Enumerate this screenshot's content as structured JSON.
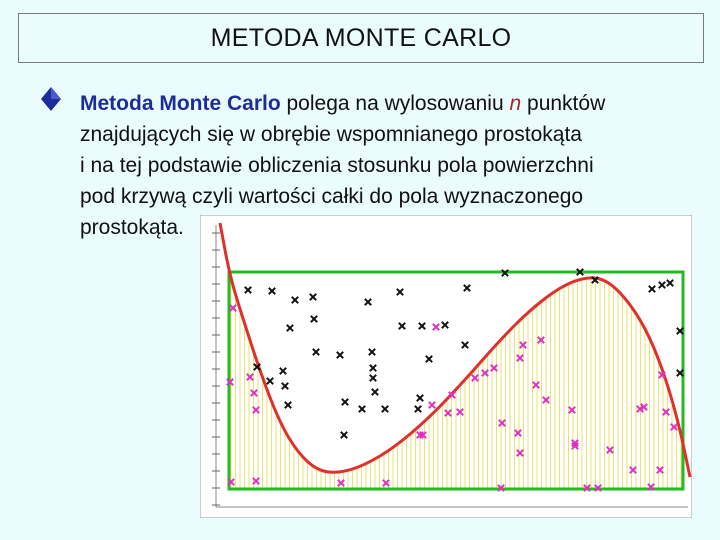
{
  "slide": {
    "title": "METODA MONTE CARLO",
    "bullet_icon": "diamond-bullet-icon",
    "text": {
      "term": "Metoda Monte Carlo",
      "line1_a": " polega na wylosowaniu ",
      "variable": "n",
      "line1_b": " punktów",
      "line2": "znajdujących się w obrębie wspomnianego prostokąta",
      "line3": "i na tej podstawie obliczenia stosunku pola powierzchni",
      "line4": "pod krzywą czyli wartości całki do pola wyznaczonego",
      "line5": "prostokąta."
    }
  },
  "colors": {
    "background": "#eafcfe",
    "term": "#1c2c9c",
    "variable": "#9a2a2a",
    "curve": "#e0302a",
    "rectangle": "#22bb22",
    "fill_lines": "#e8e070",
    "points_above": "#111111",
    "points_below": "#e030c0"
  }
}
